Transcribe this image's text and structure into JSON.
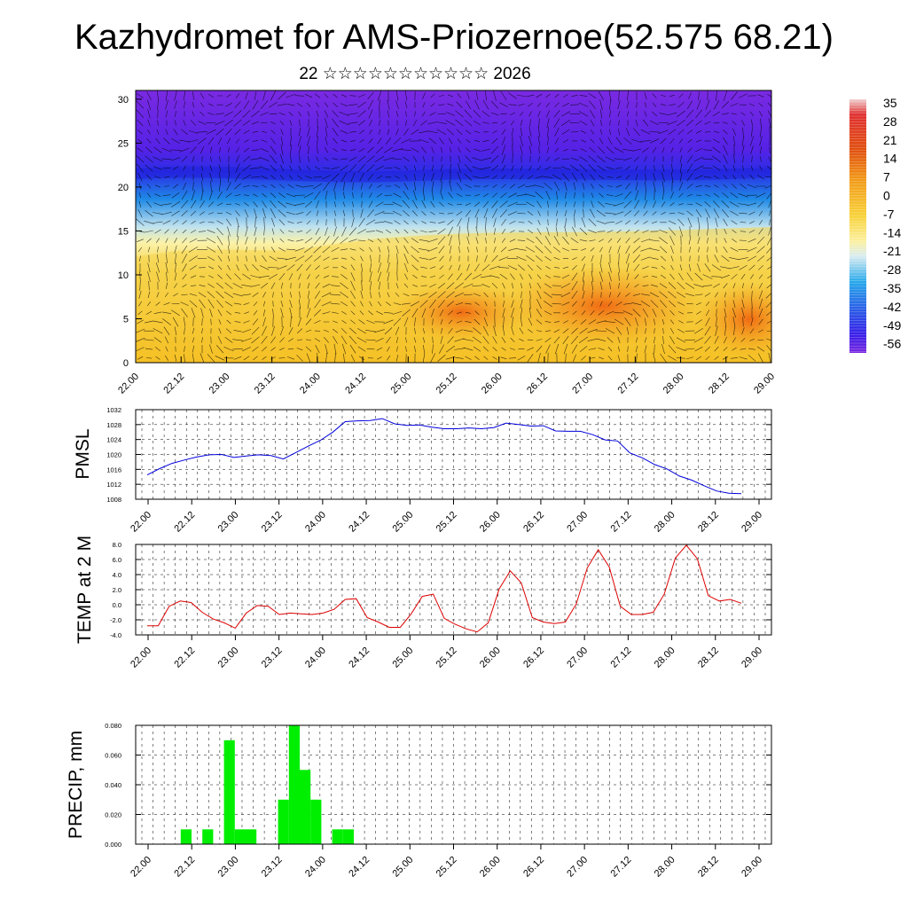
{
  "title": "Kazhydromet for AMS-Priozernoe(52.575 68.21)",
  "subtitle": "22 ☆☆☆☆☆☆☆☆☆☆☆ 2026",
  "time_labels": [
    "22.00",
    "22.12",
    "23.00",
    "23.12",
    "24.00",
    "24.12",
    "25.00",
    "25.12",
    "26.00",
    "26.12",
    "27.00",
    "27.12",
    "28.00",
    "28.12",
    "29.00"
  ],
  "colors": {
    "pmsl_line": "#0000dd",
    "temp_line": "#dd0000",
    "precip_bar": "#00ee00",
    "vector": "#000000"
  },
  "chart_data": [
    {
      "type": "heatmap",
      "name": "vertical-section",
      "title": "",
      "xlabel": "",
      "ylabel": "",
      "x_tick_labels": [
        "22.00",
        "22.12",
        "23.00",
        "23.12",
        "24.00",
        "24.12",
        "25.00",
        "25.12",
        "26.00",
        "26.12",
        "27.00",
        "27.12",
        "28.00",
        "28.12",
        "29.00"
      ],
      "y_ticks": [
        0,
        5,
        10,
        15,
        20,
        25,
        30
      ],
      "ylim": [
        0,
        31
      ],
      "color_scale": {
        "labels": [
          "35",
          "28",
          "21",
          "14",
          "7",
          "0",
          "-7",
          "-14",
          "-21",
          "-28",
          "-35",
          "-42",
          "-49",
          "-56"
        ],
        "min": -63,
        "max": 42
      },
      "description_values": "temperature (°C) by height with wind vectors overlaid"
    },
    {
      "type": "line",
      "name": "PMSL",
      "ylabel": "PMSL",
      "y_ticks": [
        1008,
        1012,
        1016,
        1020,
        1024,
        1028,
        1032
      ],
      "ylim": [
        1008,
        1032
      ],
      "x_step_hours": 3,
      "values": [
        1014.5,
        1016.2,
        1017.6,
        1018.5,
        1019.3,
        1019.9,
        1020.0,
        1019.2,
        1019.6,
        1019.9,
        1019.7,
        1018.8,
        1020.5,
        1022.2,
        1023.8,
        1026.0,
        1028.8,
        1029.0,
        1029.1,
        1029.6,
        1028.2,
        1027.8,
        1027.9,
        1027.3,
        1026.9,
        1026.9,
        1027.1,
        1026.9,
        1027.2,
        1028.4,
        1028.0,
        1027.6,
        1027.7,
        1026.3,
        1026.2,
        1026.2,
        1025.3,
        1023.9,
        1023.6,
        1020.4,
        1019.1,
        1017.3,
        1016.1,
        1014.2,
        1013.1,
        1011.6,
        1010.2,
        1009.6,
        1009.5
      ]
    },
    {
      "type": "line",
      "name": "TEMP at 2 M",
      "ylabel": "TEMP at 2 M",
      "y_ticks": [
        -4,
        -2,
        0,
        2,
        4,
        6,
        8
      ],
      "y_tick_labels": [
        "-4.0",
        "-2.0",
        "0.0",
        "2.0",
        "4.0",
        "6.0",
        "8.0"
      ],
      "ylim": [
        -4,
        8
      ],
      "x_step_hours": 3,
      "values": [
        -2.8,
        -2.8,
        -0.2,
        0.5,
        0.3,
        -1.0,
        -1.9,
        -2.4,
        -3.1,
        -1.1,
        -0.1,
        -0.2,
        -1.3,
        -1.1,
        -1.2,
        -1.3,
        -1.1,
        -0.6,
        0.7,
        0.8,
        -1.7,
        -2.3,
        -3.0,
        -3.0,
        -1.2,
        1.1,
        1.4,
        -1.8,
        -2.6,
        -3.2,
        -3.6,
        -2.4,
        2.1,
        4.5,
        2.9,
        -1.7,
        -2.3,
        -2.5,
        -2.3,
        0.1,
        4.9,
        7.3,
        5.0,
        -0.2,
        -1.3,
        -1.3,
        -1.0,
        1.4,
        6.2,
        7.9,
        6.1,
        1.2,
        0.5,
        0.7,
        0.2
      ]
    },
    {
      "type": "bar",
      "name": "PRECIP, mm",
      "ylabel": "PRECIP, mm",
      "y_ticks": [
        0,
        0.02,
        0.04,
        0.06,
        0.08
      ],
      "y_tick_labels": [
        "0.000",
        "0.020",
        "0.040",
        "0.060",
        "0.080"
      ],
      "ylim": [
        0,
        0.08
      ],
      "x_step_hours": 3,
      "values": [
        0,
        0,
        0,
        0,
        0.01,
        0,
        0.01,
        0,
        0.07,
        0.01,
        0.01,
        0,
        0,
        0.03,
        0.08,
        0.05,
        0.03,
        0,
        0.01,
        0.01,
        0,
        0,
        0,
        0,
        0,
        0,
        0,
        0,
        0,
        0,
        0,
        0,
        0,
        0,
        0,
        0,
        0,
        0,
        0,
        0,
        0,
        0,
        0,
        0,
        0,
        0,
        0,
        0,
        0,
        0,
        0,
        0,
        0,
        0,
        0,
        0
      ]
    }
  ]
}
